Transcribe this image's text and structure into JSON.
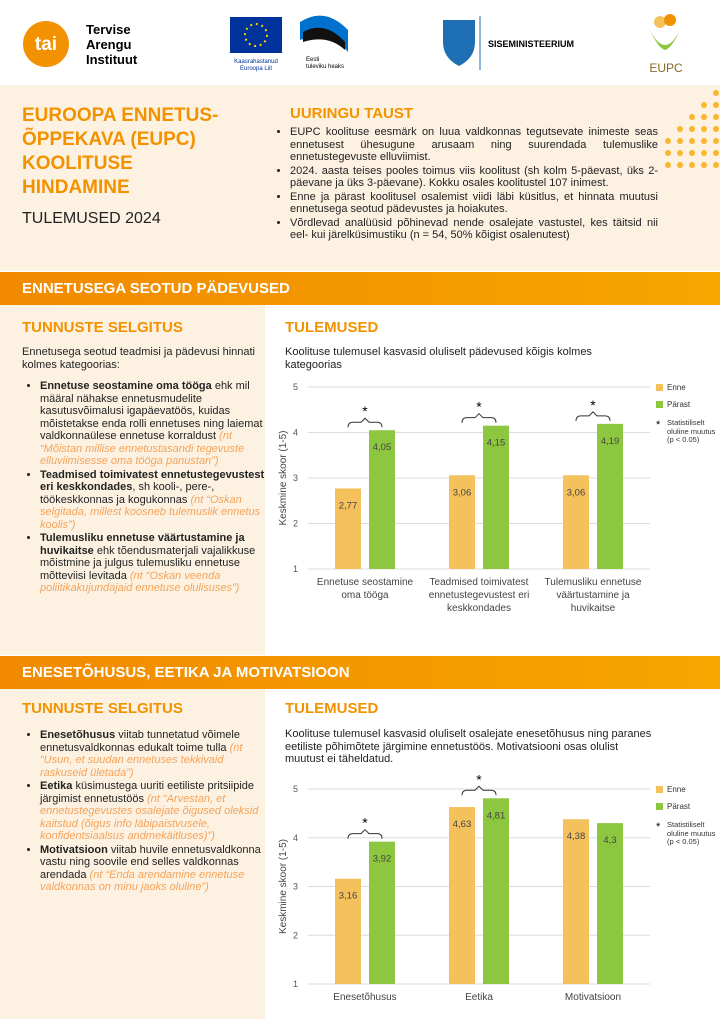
{
  "header": {
    "tai_logo": "tai",
    "tai_name": [
      "Tervise",
      "Arengu",
      "Instituut"
    ],
    "eu_caption": [
      "Kaasrahastanud",
      "Euroopa Liit"
    ],
    "estonia_caption": [
      "Eesti",
      "tuleviku heaks"
    ],
    "ministry": "SISEMINISTEERIUM",
    "eupc": "EUPC"
  },
  "intro": {
    "title_lines": [
      "EUROOPA ENNETUS-",
      "ÕPPEKAVA (EUPC)",
      "KOOLITUSE",
      "HINDAMINE"
    ],
    "subtitle": "TULEMUSED 2024",
    "background_title": "UURINGU TAUST",
    "background_bullets": [
      "EUPC koolituse eesmärk on luua valdkonnas tegutsevate inimeste seas ennetusest ühesugune arusaam ning suurendada tulemuslike ennetustegevuste elluviimist.",
      "2024. aasta teises pooles toimus viis koolitust (sh kolm 5-päevast, üks 2-päevane ja üks 3-päevane). Kokku osales koolitustel 107 inimest.",
      "Enne ja pärast koolitusel osalemist viidi läbi küsitlus, et hinnata muutusi ennetusega seotud pädevustes ja hoiakutes.",
      "Võrdlevad analüüsid põhinevad nende osalejate vastustel, kes täitsid nii eel- kui järelküsimustiku (n = 54, 50% kõigist osalenutest)"
    ]
  },
  "sections": [
    {
      "band": "ENNETUSEGA SEOTUD PÄDEVUSED",
      "explanation_title": "TUNNUSTE SELGITUS",
      "explanation_intro": "Ennetusega seotud teadmisi ja pädevusi hinnati kolmes kategoorias:",
      "items": [
        {
          "bold": "Ennetuse seostamine oma tööga",
          "text": " ehk mil määral nähakse ennetusmudelite kasutusvõimalusi igapäevatöös, kuidas mõistetakse enda rolli ennetuses ning laiemat valdkonnaülese ennetuse korraldust",
          "italic": " (nt “Mõistan millise ennetustasandi tegevuste elluviimisesse oma tööga panustan”)"
        },
        {
          "bold": "Teadmised toimivatest ennetustegevustest eri keskkondades",
          "text": ", sh kooli-, pere-, töökeskkonnas ja kogukonnas",
          "italic": " (nt “Oskan selgitada, millest koosneb tulemuslik ennetus koolis”)"
        },
        {
          "bold": "Tulemusliku ennetuse väärtustamine ja huvikaitse",
          "text": " ehk tõendusmaterjali vajalikkuse mõistmine ja julgus tulemusliku ennetuse mõtteviisi levitada",
          "italic": " (nt “Oskan veenda poliitikakujundajaid ennetuse olulisuses”)"
        }
      ],
      "results_title": "TULEMUSED",
      "results_caption": "Koolituse tulemusel kasvasid oluliselt pädevused kõigis kolmes kategoorias"
    },
    {
      "band": "ENESETÕHUSUS, EETIKA JA MOTIVATSIOON",
      "explanation_title": "TUNNUSTE SELGITUS",
      "items": [
        {
          "bold": "Enesetõhusus",
          "text": " viitab tunnetatud võimele ennetusvaldkonnas edukalt toime tulla",
          "italic": " (nt “Usun, et suudan ennetuses tekkivaid raskuseid ületada”)"
        },
        {
          "bold": "Eetika",
          "text": " küsimustega uuriti eetiliste pritsiipide järgimist ennetustöös",
          "italic": " (nt “Arvestan, et ennetustegevustes osalejate õigused oleksid kaitstud (õigus info läbipaistvusele, konfidentsiaalsus andmekäitluses)”)"
        },
        {
          "bold": "Motivatsioon",
          "text": " viitab huvile ennetusvaldkonna vastu ning soovile end selles valdkonnas arendada",
          "italic": " (nt “Enda arendamine ennetuse valdkonnas on minu jaoks oluline”)"
        }
      ],
      "results_title": "TULEMUSED",
      "results_caption": "Koolituse tulemusel kasvasid oluliselt osalejate enesetõhusus ning paranes eetiliste põhimõtete järgimine ennetustöös. Motivatsiooni osas olulist muutust ei täheldatud."
    }
  ],
  "chart_data": [
    {
      "type": "bar",
      "y_label": "Keskmine skoor (1-5)",
      "categories": [
        "Ennetuse seostamine oma tööga",
        "Teadmised toimivatest ennetustegevustest eri keskkondades",
        "Tulemusliku ennetuse väärtustamine ja huvikaitse"
      ],
      "series": [
        {
          "name": "Enne",
          "color": "#f5c15c",
          "values": [
            2.77,
            3.06,
            3.06
          ],
          "value_labels": [
            "2,77",
            "3,06",
            "3,06"
          ]
        },
        {
          "name": "Pärast",
          "color": "#8dc63f",
          "values": [
            4.05,
            4.15,
            4.19
          ],
          "value_labels": [
            "4,05",
            "4,15",
            "4,19"
          ]
        }
      ],
      "significance": [
        "*",
        "*",
        "*"
      ],
      "legend_note": {
        "symbol": "*",
        "text": "Statistiliselt oluline muutus (p < 0.05)"
      },
      "ylim": [
        1,
        5
      ],
      "yticks": [
        1,
        2,
        3,
        4,
        5
      ],
      "grid": true,
      "legend": "right"
    },
    {
      "type": "bar",
      "y_label": "Keskmine skoor (1-5)",
      "categories": [
        "Enesetõhusus",
        "Eetika",
        "Motivatsioon"
      ],
      "series": [
        {
          "name": "Enne",
          "color": "#f5c15c",
          "values": [
            3.16,
            4.63,
            4.38
          ],
          "value_labels": [
            "3,16",
            "4,63",
            "4,38"
          ]
        },
        {
          "name": "Pärast",
          "color": "#8dc63f",
          "values": [
            3.92,
            4.81,
            4.3
          ],
          "value_labels": [
            "3,92",
            "4,81",
            "4,3"
          ]
        }
      ],
      "significance": [
        "*",
        "*",
        null
      ],
      "legend_note": {
        "symbol": "*",
        "text": "Statistiliselt oluline muutus (p < 0.05)"
      },
      "ylim": [
        1,
        5
      ],
      "yticks": [
        1,
        2,
        3,
        4,
        5
      ],
      "grid": true,
      "legend": "right"
    }
  ]
}
